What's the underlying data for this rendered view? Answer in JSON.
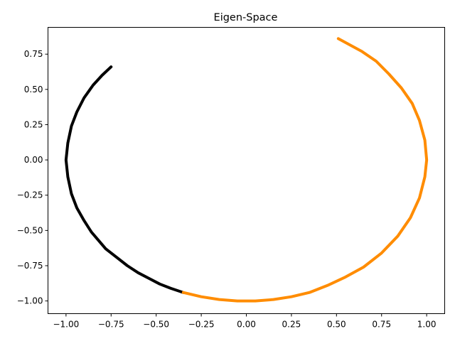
{
  "chart_data": {
    "type": "scatter",
    "title": "Eigen-Space",
    "xlabel": "",
    "ylabel": "",
    "xlim": [
      -1.1,
      1.1
    ],
    "ylim": [
      -1.09,
      0.94
    ],
    "grid": false,
    "x_ticks": [
      -1.0,
      -0.75,
      -0.5,
      -0.25,
      0.0,
      0.25,
      0.5,
      0.75,
      1.0
    ],
    "x_tick_labels": [
      "−1.00",
      "−0.75",
      "−0.50",
      "−0.25",
      "0.00",
      "0.25",
      "0.50",
      "0.75",
      "1.00"
    ],
    "y_ticks": [
      0.75,
      0.5,
      0.25,
      0.0,
      -0.25,
      -0.5,
      -0.75,
      -1.0
    ],
    "y_tick_labels": [
      "0.75",
      "0.50",
      "0.25",
      "0.00",
      "−0.25",
      "−0.50",
      "−0.75",
      "−1.00"
    ],
    "series": [
      {
        "color": "#000000",
        "x": [
          -0.75,
          -0.8,
          -0.85,
          -0.9,
          -0.94,
          -0.97,
          -0.99,
          -1.0,
          -0.99,
          -0.97,
          -0.94,
          -0.9,
          -0.86,
          -0.82,
          -0.78,
          -0.72,
          -0.66,
          -0.6,
          -0.54,
          -0.48,
          -0.42,
          -0.35
        ],
        "y": [
          0.66,
          0.6,
          0.53,
          0.44,
          0.34,
          0.24,
          0.12,
          0.0,
          -0.12,
          -0.24,
          -0.34,
          -0.43,
          -0.51,
          -0.57,
          -0.63,
          -0.69,
          -0.75,
          -0.8,
          -0.84,
          -0.88,
          -0.91,
          -0.94
        ]
      },
      {
        "color": "#ff8c00",
        "x": [
          -0.35,
          -0.25,
          -0.15,
          -0.05,
          0.05,
          0.15,
          0.25,
          0.35,
          0.45,
          0.55,
          0.65,
          0.75,
          0.84,
          0.91,
          0.96,
          0.99,
          1.0,
          0.99,
          0.96,
          0.92,
          0.86,
          0.79,
          0.72,
          0.64,
          0.51
        ],
        "y": [
          -0.94,
          -0.97,
          -0.99,
          -1.0,
          -1.0,
          -0.99,
          -0.97,
          -0.94,
          -0.89,
          -0.83,
          -0.76,
          -0.66,
          -0.54,
          -0.41,
          -0.27,
          -0.12,
          0.0,
          0.14,
          0.28,
          0.4,
          0.51,
          0.61,
          0.7,
          0.77,
          0.86
        ]
      }
    ]
  }
}
